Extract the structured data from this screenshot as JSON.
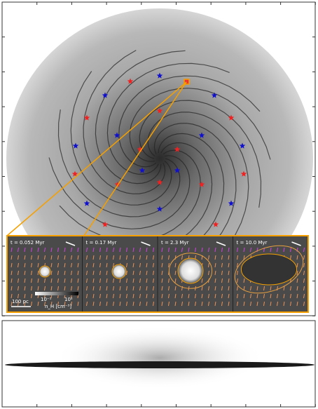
{
  "panels": [
    {
      "label": "t = 0.052 Myr"
    },
    {
      "label": "t = 0.17 Myr"
    },
    {
      "label": "t = 2.3 Myr"
    },
    {
      "label": "t = 10.0 Myr"
    }
  ],
  "scale_bar": "100 pc",
  "colorbar": {
    "ticks": [
      "10⁻¹",
      "10²"
    ],
    "label": "n_H [cm⁻³]"
  }
}
